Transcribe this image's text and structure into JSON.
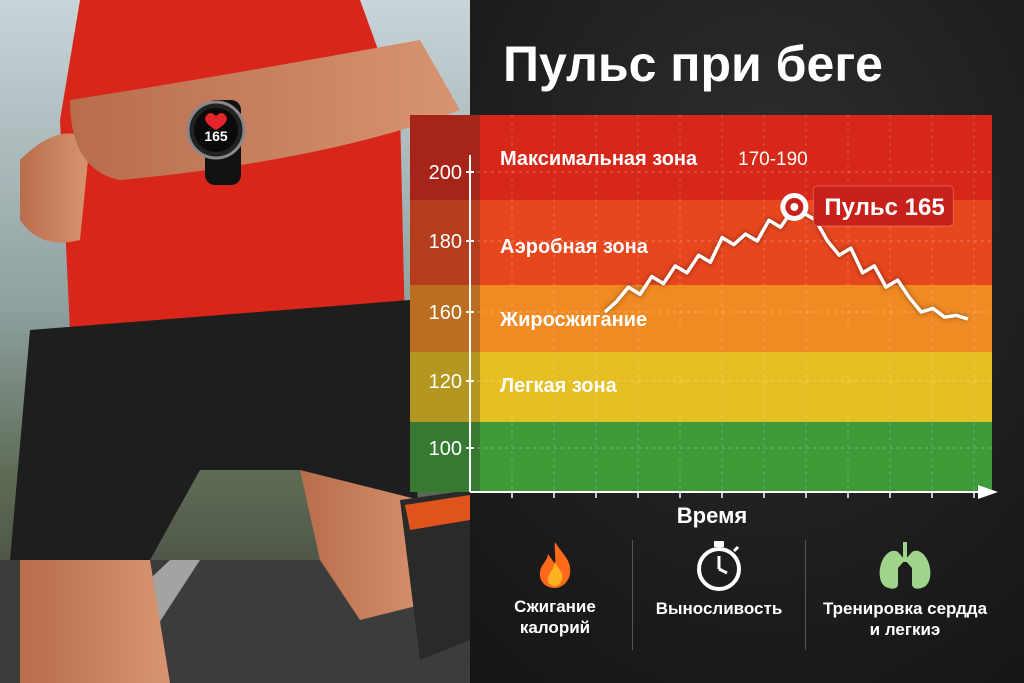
{
  "title": "Пульс при беге",
  "watch_reading": "165",
  "chart_data": {
    "type": "line",
    "title": "Пульс при беге",
    "xlabel": "Время",
    "ylabel": "",
    "yticks": [
      200,
      180,
      160,
      120,
      100
    ],
    "zones": [
      {
        "name": "Максимальная зона",
        "range": "170-190",
        "color": "#d62718",
        "text_color": "#ffffff"
      },
      {
        "name": "Аэробная зона",
        "range": "",
        "color": "#e8471e",
        "text_color": "#ffffff"
      },
      {
        "name": "Жиросжигание",
        "range": "",
        "color": "#f08a22",
        "text_color": "#ffffff"
      },
      {
        "name": "Легкая зона",
        "range": "",
        "color": "#e6c022",
        "text_color": "#ffffff"
      },
      {
        "name": "",
        "range": "",
        "color": "#3f9a3a",
        "text_color": "#ffffff"
      }
    ],
    "series": [
      {
        "values": [
          160,
          163,
          167,
          165,
          170,
          168,
          173,
          171,
          176,
          174,
          181,
          179,
          182,
          180,
          186,
          184,
          189,
          188,
          186,
          180,
          176,
          178,
          171,
          173,
          167,
          169,
          164,
          160,
          161,
          157,
          158,
          156
        ]
      }
    ],
    "annotation": {
      "label": "Пульс 165"
    }
  },
  "benefits": [
    {
      "icon": "flame-icon",
      "label_line1": "Сжигание",
      "label_line2": "калорий"
    },
    {
      "icon": "stopwatch-icon",
      "label_line1": "Выносливость",
      "label_line2": ""
    },
    {
      "icon": "lungs-icon",
      "label_line1": "Тренировка сердда",
      "label_line2": "и легкиэ"
    }
  ],
  "colors": {
    "flame": "#ff6a1a",
    "stopwatch": "#ffffff",
    "lungs": "#9fd58a",
    "accent_red": "#c8201a"
  }
}
